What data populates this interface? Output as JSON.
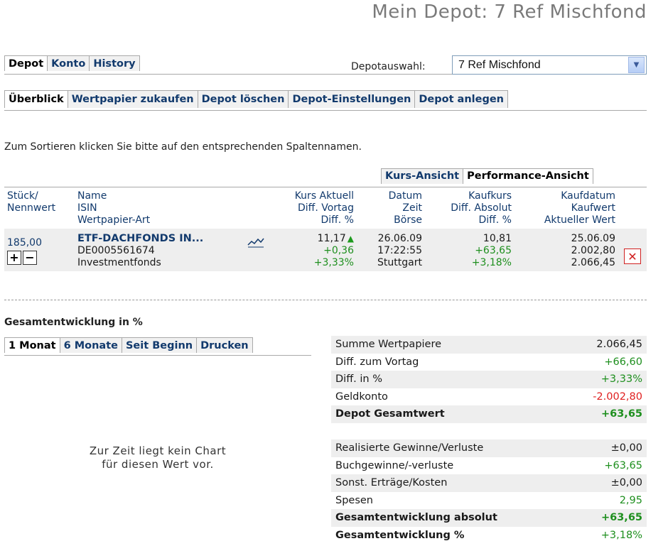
{
  "page_title": "Mein Depot: 7 Ref Mischfond",
  "main_tabs": [
    "Depot",
    "Konto",
    "History"
  ],
  "depot_select": {
    "label": "Depotauswahl:",
    "value": "7 Ref Mischfond"
  },
  "sub_tabs": [
    "Überblick",
    "Wertpapier zukaufen",
    "Depot löschen",
    "Depot-Einstellungen",
    "Depot anlegen"
  ],
  "sort_hint": "Zum Sortieren klicken Sie bitte auf den entsprechenden Spaltennamen.",
  "view_tabs": [
    "Kurs-Ansicht",
    "Performance-Ansicht"
  ],
  "columns": {
    "stueck": [
      "Stück/",
      "Nennwert"
    ],
    "name": [
      "Name",
      "ISIN",
      "Wertpapier-Art"
    ],
    "kurs": [
      "Kurs Aktuell",
      "Diff. Vortag",
      "Diff. %"
    ],
    "datum": [
      "Datum",
      "Zeit",
      "Börse"
    ],
    "kaufkurs": [
      "Kaufkurs",
      "Diff. Absolut",
      "Diff. %"
    ],
    "kaufdatum": [
      "Kaufdatum",
      "Kaufwert",
      "Aktueller Wert"
    ]
  },
  "position": {
    "stueck": "185,00",
    "name": "ETF-DACHFONDS IN...",
    "isin": "DE0005561674",
    "art": "Investmentfonds",
    "kurs": "11,17",
    "diff_vortag": "+0,36",
    "diff_pct": "+3,33%",
    "datum": "26.06.09",
    "zeit": "17:22:55",
    "boerse": "Stuttgart",
    "kaufkurs": "10,81",
    "diff_absolut": "+63,65",
    "diff_pct2": "+3,18%",
    "kaufdatum": "25.06.09",
    "kaufwert": "2.002,80",
    "aktueller_wert": "2.066,45"
  },
  "gesamt_title": "Gesamtentwicklung in %",
  "chart_tabs": [
    "1 Monat",
    "6 Monate",
    "Seit Beginn",
    "Drucken"
  ],
  "no_chart": [
    "Zur Zeit liegt kein Chart",
    "für diesen Wert vor."
  ],
  "summary1": [
    {
      "label": "Summe Wertpapiere",
      "value": "2.066,45"
    },
    {
      "label": "Diff. zum Vortag",
      "value": "+66,60"
    },
    {
      "label": "Diff. in %",
      "value": "+3,33%"
    },
    {
      "label": "Geldkonto",
      "value": "-2.002,80"
    },
    {
      "label": "Depot Gesamtwert",
      "value": "+63,65"
    }
  ],
  "summary2": [
    {
      "label": "Realisierte Gewinne/Verluste",
      "value": "±0,00"
    },
    {
      "label": "Buchgewinne/-verluste",
      "value": "+63,65"
    },
    {
      "label": "Sonst. Erträge/Kosten",
      "value": "±0,00"
    },
    {
      "label": "Spesen",
      "value": "2,95"
    },
    {
      "label": "Gesamtentwicklung absolut",
      "value": "+63,65"
    },
    {
      "label": "Gesamtentwicklung %",
      "value": "+3,18%"
    }
  ],
  "colors": {
    "navy": "#123a6d",
    "positive": "#1e8f1e",
    "negative": "#e02020"
  }
}
